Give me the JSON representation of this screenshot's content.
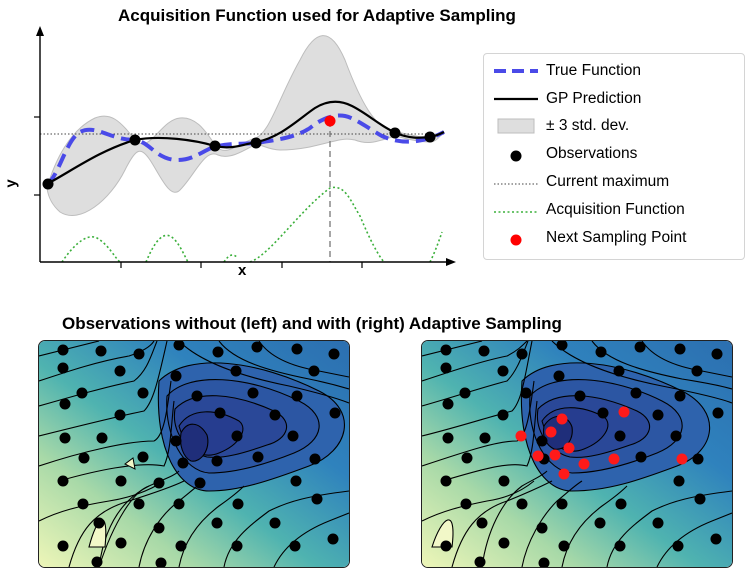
{
  "top_panel": {
    "title": "Acquisition Function used for Adaptive Sampling",
    "xlabel": "x",
    "ylabel": "y"
  },
  "legend": {
    "items": [
      {
        "label": "True Function",
        "style": "dashed-line",
        "color": "#4a4ae8"
      },
      {
        "label": "GP Prediction",
        "style": "solid-line",
        "color": "#000000"
      },
      {
        "label": "± 3 std. dev.",
        "style": "filled-band",
        "color": "#d9d9d9"
      },
      {
        "label": "Observations",
        "style": "dot",
        "color": "#000000"
      },
      {
        "label": "Current maximum",
        "style": "dotted-line",
        "color": "#555555"
      },
      {
        "label": "Acquisition Function",
        "style": "dotted-line",
        "color": "#3cb03c"
      },
      {
        "label": "Next Sampling Point",
        "style": "dot",
        "color": "#ff0000"
      }
    ]
  },
  "bottom_panel": {
    "title": "Observations without (left) and with (right) Adaptive Sampling",
    "left_map": {
      "description_side": "left",
      "observation_color": "#000000"
    },
    "right_map": {
      "description_side": "right",
      "observation_color": "#000000",
      "adaptive_color": "#ff0000"
    }
  },
  "colors": {
    "contour_low": "#1f2e7a",
    "contour_mid": "#3a86c0",
    "contour_high": "#4fb3b0",
    "contour_edge": "#e6f2b0"
  }
}
